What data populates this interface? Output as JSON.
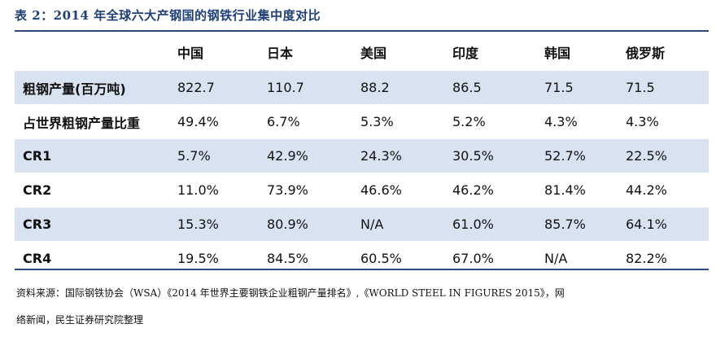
{
  "title": "表 2：2014 年全球六大产钢国的钢铁行业集中度对比",
  "header": [
    "",
    "中国",
    "日本",
    "美国",
    "印度",
    "韩国",
    "俄罗斯"
  ],
  "rows": [
    [
      "粗钢产量(百万吨)",
      "822.7",
      "110.7",
      "88.2",
      "86.5",
      "71.5",
      "71.5"
    ],
    [
      "占世界粗钢产量比重",
      "49.4%",
      "6.7%",
      "5.3%",
      "5.2%",
      "4.3%",
      "4.3%"
    ],
    [
      "CR1",
      "5.7%",
      "42.9%",
      "24.3%",
      "30.5%",
      "52.7%",
      "22.5%"
    ],
    [
      "CR2",
      "11.0%",
      "73.9%",
      "46.6%",
      "46.2%",
      "81.4%",
      "44.2%"
    ],
    [
      "CR3",
      "15.3%",
      "80.9%",
      "N/A",
      "61.0%",
      "85.7%",
      "64.1%"
    ],
    [
      "CR4",
      "19.5%",
      "84.5%",
      "60.5%",
      "67.0%",
      "N/A",
      "82.2%"
    ]
  ],
  "source": {
    "line1": "资料来源：国际钢铁协会（WSA）《2014 年世界主要钢铁企业粗钢产量排名》,《WORLD STEEL IN FIGURES 2015》，网",
    "line2": "络新闻，民生证券研究院整理"
  }
}
